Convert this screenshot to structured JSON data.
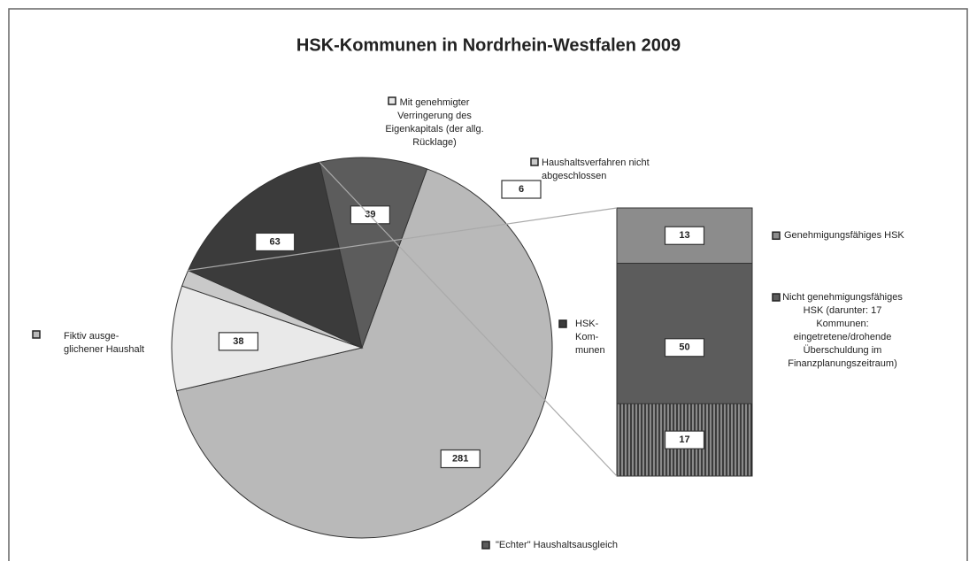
{
  "chart_data": {
    "type": "pie_bar",
    "title": "HSK-Kommunen in Nordrhein-Westfalen 2009",
    "pie": {
      "categories": [
        [
          "Fiktiv ausge-",
          "glichener Haushalt"
        ],
        [
          "Mit genehmigter",
          "Verringerung des",
          "Eigenkapitals (der allg.",
          "Rücklage)"
        ],
        [
          "Haushaltsverfahren nicht",
          "abgeschlossen"
        ],
        [
          "HSK-",
          "Kom-",
          "munen"
        ],
        [
          "\"Echter\" Haushaltsausgleich"
        ]
      ],
      "values": [
        281,
        38,
        6,
        63,
        39
      ],
      "colors": [
        "#b9b9b9",
        "#e9e9e9",
        "#c9c9c9",
        "#3b3b3b",
        "#5c5c5c"
      ]
    },
    "bar": {
      "categories": [
        [
          "Genehmigungsfähiges HSK"
        ],
        [
          "Nicht genehmigungsfähiges",
          "HSK (darunter: 17",
          "Kommunen:",
          "eingetretene/drohende",
          "Überschuldung im",
          "Finanzplanungszeitraum)"
        ]
      ],
      "values": [
        13,
        50
      ],
      "colors": [
        "#8c8c8c",
        "#5c5c5c"
      ],
      "subset_value": 17
    }
  }
}
